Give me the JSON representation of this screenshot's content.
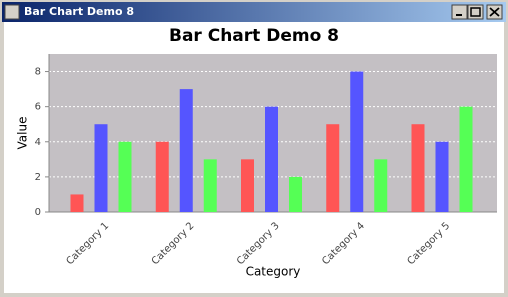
{
  "window": {
    "title": "Bar Chart Demo 8"
  },
  "chart_data": {
    "type": "bar",
    "title": "Bar Chart Demo 8",
    "x_label": "Category",
    "y_label": "Value",
    "categories": [
      "Category 1",
      "Category 2",
      "Category 3",
      "Category 4",
      "Category 5"
    ],
    "series": [
      {
        "color": "#ff5555",
        "values": [
          1,
          4,
          3,
          5,
          5
        ]
      },
      {
        "color": "#5555ff",
        "values": [
          5,
          7,
          6,
          8,
          4
        ]
      },
      {
        "color": "#55ff55",
        "values": [
          4,
          3,
          2,
          3,
          6
        ]
      }
    ],
    "ylim": [
      0,
      9
    ],
    "yticks": [
      0,
      2,
      4,
      6,
      8
    ],
    "grid": true
  }
}
